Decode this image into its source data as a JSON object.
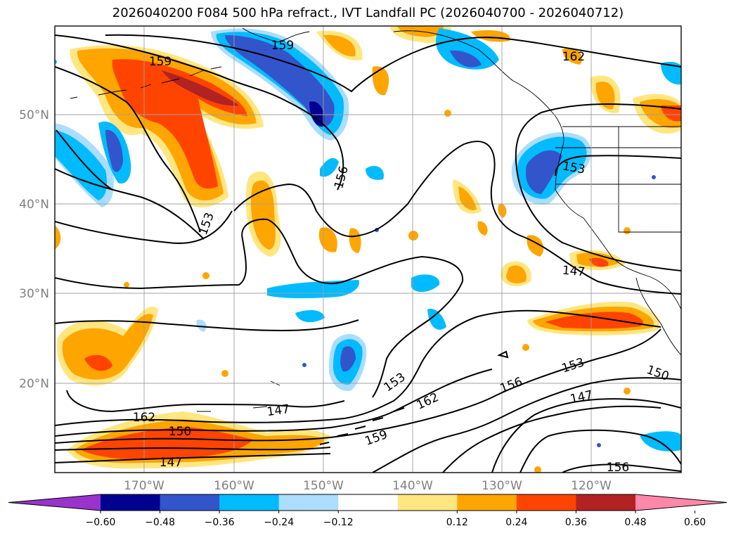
{
  "title": "2026040200 F084 500 hPa refract., IVT Landfall PC (2026040700 - 2026040712)",
  "lat_labels": [
    "50°N",
    "40°N",
    "30°N",
    "20°N"
  ],
  "lon_labels": [
    "170°W",
    "160°W",
    "150°W",
    "140°W",
    "130°W",
    "120°W"
  ],
  "contour_labels": [
    "159",
    "162",
    "159",
    "156",
    "153",
    "153",
    "147",
    "150",
    "162",
    "147",
    "153",
    "162",
    "159",
    "156",
    "153",
    "150",
    "147",
    "147",
    "156"
  ],
  "colorbar": {
    "colors": [
      "#9933cc",
      "#000090",
      "#3355cc",
      "#00bbff",
      "#aaddff",
      "#ffffff",
      "#ffe680",
      "#ffa500",
      "#ff4400",
      "#b22222",
      "#ff88aa"
    ],
    "ticks": [
      "−0.60",
      "−0.48",
      "−0.36",
      "−0.24",
      "−0.12",
      "0.12",
      "0.24",
      "0.36",
      "0.48",
      "0.60"
    ]
  }
}
